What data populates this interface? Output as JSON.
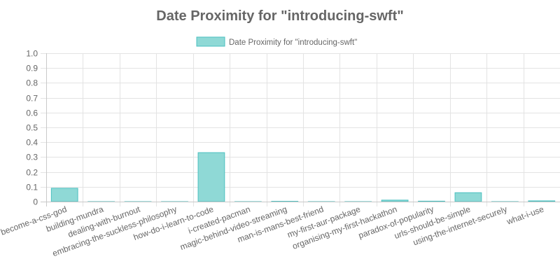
{
  "chart_data": {
    "type": "bar",
    "title": "Date Proximity for \"introducing-swft\"",
    "categories": [
      "become-a-css-god",
      "building-mundra",
      "dealing-with-burnout",
      "embracing-the-suckless-philosophy",
      "how-do-i-learn-to-code",
      "i-created-pacman",
      "magic-behind-video-streaming",
      "man-is-mans-best-friend",
      "my-first-aur-package",
      "organising-my-first-hackathon",
      "paradox-of-popularity",
      "urls-should-be-simple",
      "using-the-internet-securely",
      "what-i-use"
    ],
    "series": [
      {
        "name": "Date Proximity for \"introducing-swft\"",
        "values": [
          0.09,
          0,
          0,
          0,
          0.33,
          0,
          0.002,
          0,
          0,
          0.01,
          0.003,
          0.06,
          0,
          0.005
        ]
      }
    ],
    "y_ticks": [
      "0",
      "0.1",
      "0.2",
      "0.3",
      "0.4",
      "0.5",
      "0.6",
      "0.7",
      "0.8",
      "0.9",
      "1.0"
    ],
    "ylim": [
      0,
      1
    ],
    "grid": true,
    "legend_position": "top",
    "colors": {
      "bar_fill": "#8fd9d6",
      "bar_border": "#4bc0c0",
      "grid": "#e3e3e3",
      "text": "#666666"
    }
  }
}
